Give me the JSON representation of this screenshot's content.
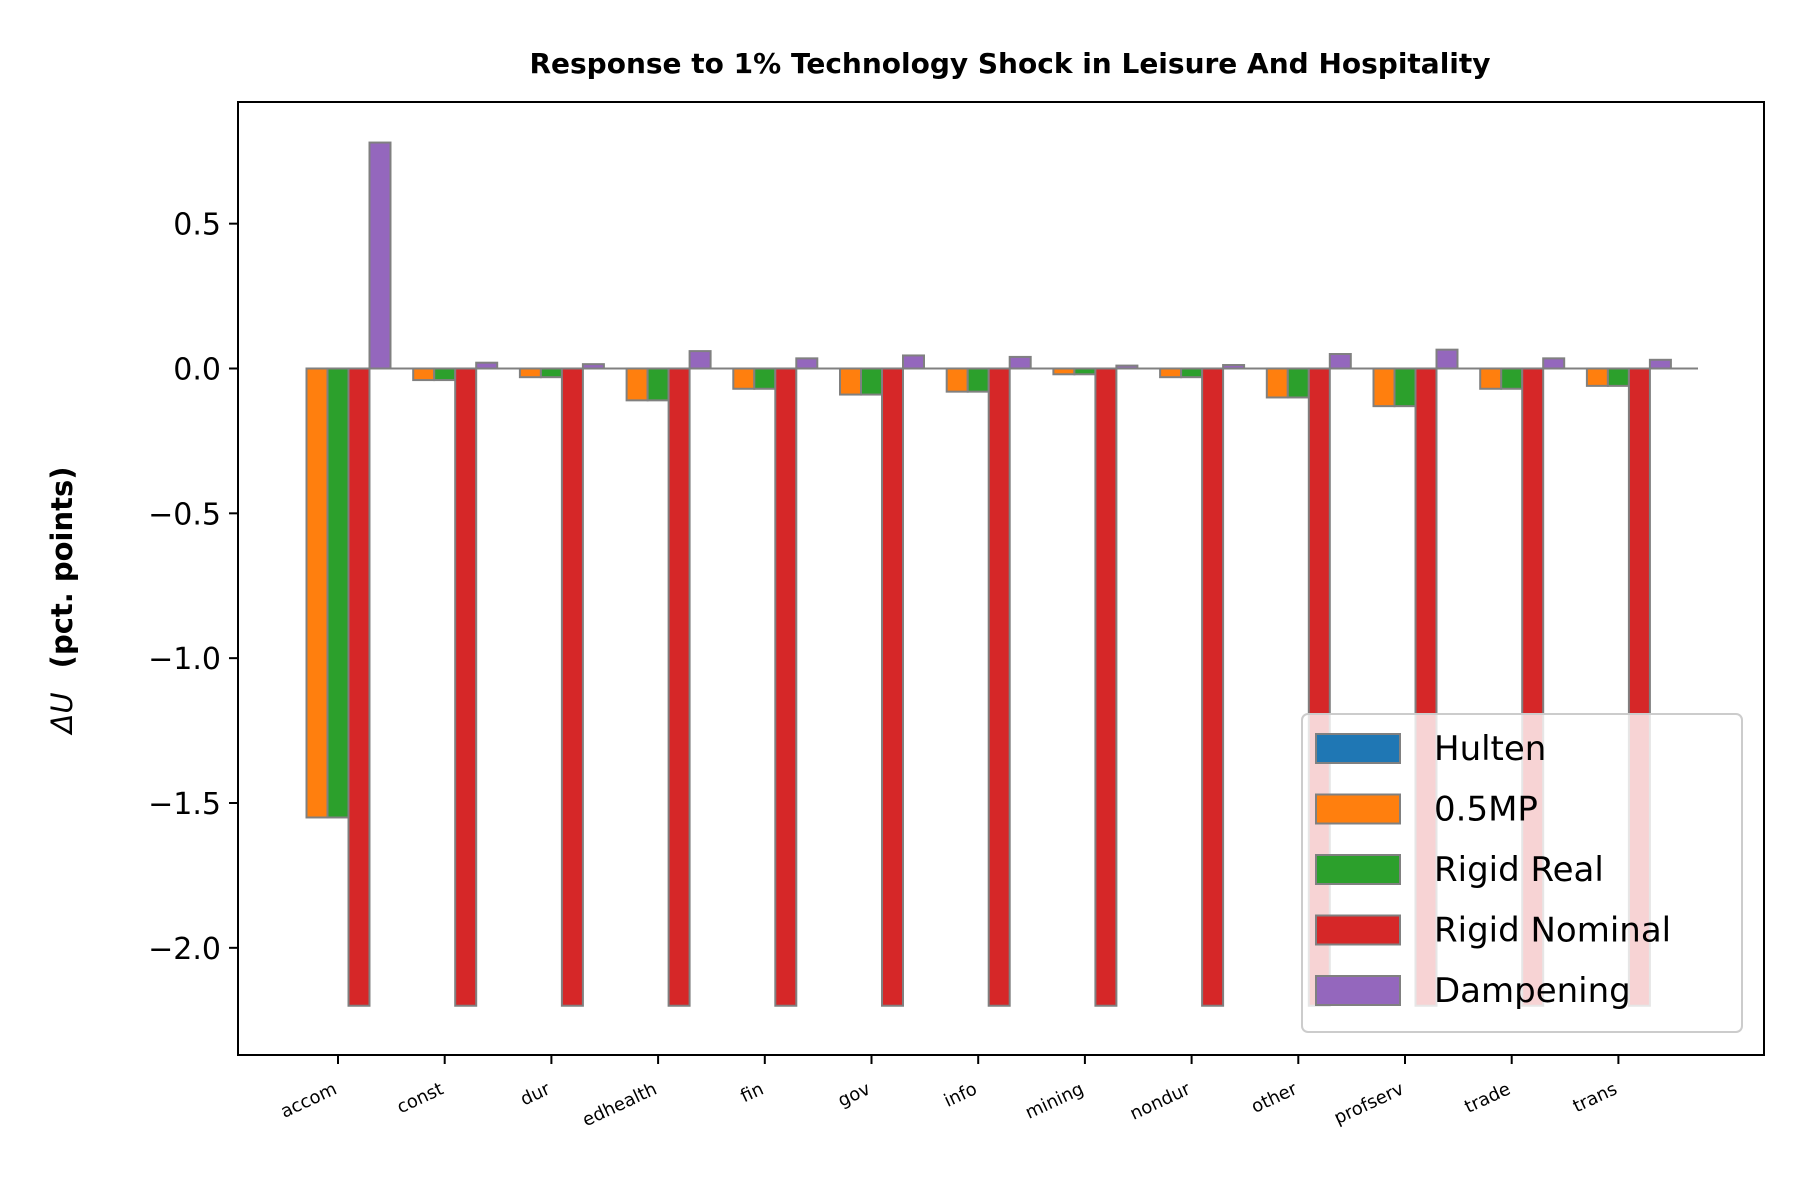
{
  "chart_data": {
    "type": "bar",
    "title": "Response to 1% Technology Shock in Leisure And Hospitality",
    "xlabel": "",
    "ylabel_symbol": "ΔU",
    "ylabel_text": "(pct. points)",
    "ylim": [
      -2.37,
      0.92
    ],
    "yticks": [
      0.5,
      0.0,
      -0.5,
      -1.0,
      -1.5,
      -2.0
    ],
    "ytick_labels": [
      "0.5",
      "0.0",
      "−0.5",
      "−1.0",
      "−1.5",
      "−2.0"
    ],
    "grid": false,
    "legend_position": "lower-right",
    "categories": [
      "accom",
      "const",
      "dur",
      "edhealth",
      "fin",
      "gov",
      "info",
      "mining",
      "nondur",
      "other",
      "profserv",
      "trade",
      "trans"
    ],
    "series": [
      {
        "name": "Hulten",
        "color": "#1f77b4",
        "values": [
          0,
          0,
          0,
          0,
          0,
          0,
          0,
          0,
          0,
          0,
          0,
          0,
          0
        ]
      },
      {
        "name": "0.5MP",
        "color": "#ff7f0e",
        "values": [
          -1.55,
          -0.04,
          -0.03,
          -0.11,
          -0.07,
          -0.09,
          -0.08,
          -0.02,
          -0.03,
          -0.1,
          -0.13,
          -0.07,
          -0.06
        ]
      },
      {
        "name": "Rigid Real",
        "color": "#2ca02c",
        "values": [
          -1.55,
          -0.04,
          -0.03,
          -0.11,
          -0.07,
          -0.09,
          -0.08,
          -0.02,
          -0.03,
          -0.1,
          -0.13,
          -0.07,
          -0.06
        ]
      },
      {
        "name": "Rigid Nominal",
        "color": "#d62728",
        "values": [
          -2.2,
          -2.2,
          -2.2,
          -2.2,
          -2.2,
          -2.2,
          -2.2,
          -2.2,
          -2.2,
          -2.2,
          -2.2,
          -2.2,
          -2.2
        ]
      },
      {
        "name": "Dampening",
        "color": "#9467bd",
        "values": [
          0.78,
          0.02,
          0.015,
          0.06,
          0.035,
          0.045,
          0.04,
          0.01,
          0.012,
          0.05,
          0.065,
          0.035,
          0.03
        ]
      }
    ],
    "bar_edge_color": "#808080"
  }
}
